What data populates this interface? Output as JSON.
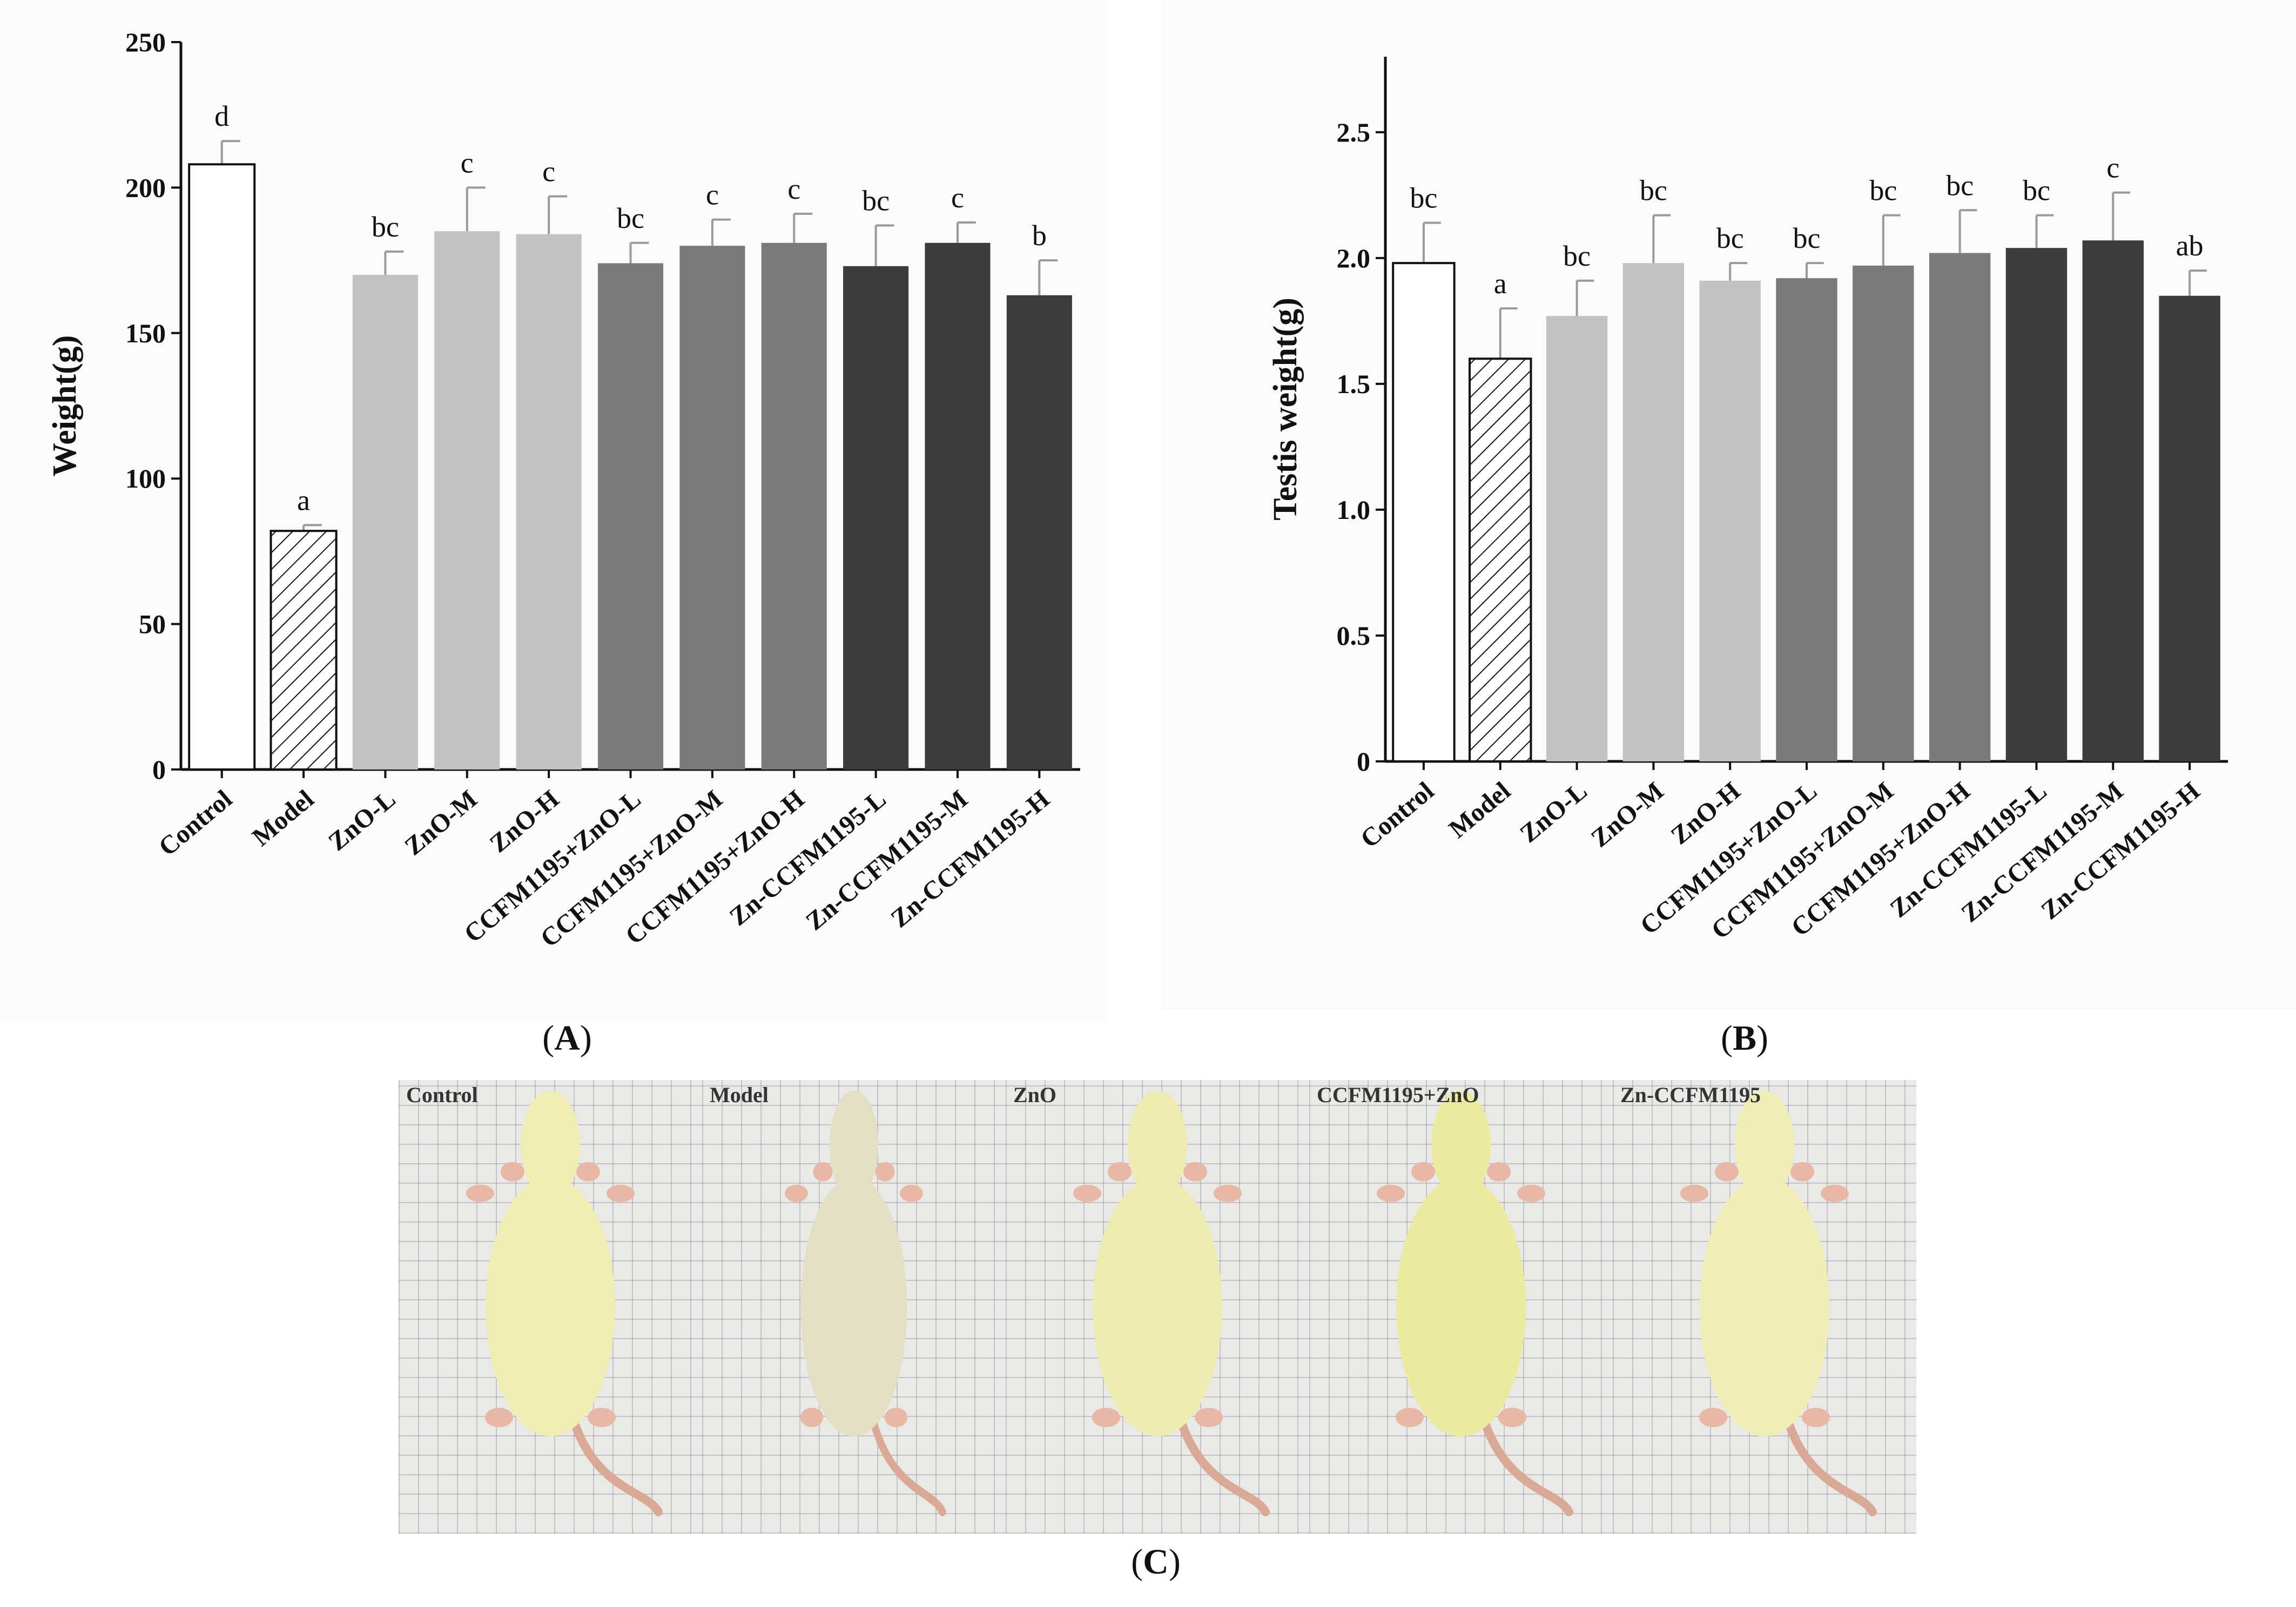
{
  "chart_data": [
    {
      "type": "bar",
      "panel_caption": "A",
      "ylabel": "Weight(g)",
      "ylim": [
        0,
        250
      ],
      "yticks": [
        "0",
        "50",
        "100",
        "150",
        "200",
        "250"
      ],
      "categories": [
        "Control",
        "Model",
        "ZnO-L",
        "ZnO-M",
        "ZnO-H",
        "CCFM1195+ZnO-L",
        "CCFM1195+ZnO-M",
        "CCFM1195+ZnO-H",
        "Zn-CCFM1195-L",
        "Zn-CCFM1195-M",
        "Zn-CCFM1195-H"
      ],
      "values": [
        208,
        82,
        170,
        185,
        184,
        174,
        180,
        181,
        173,
        181,
        163
      ],
      "errors": [
        8,
        2,
        8,
        15,
        13,
        7,
        9,
        10,
        14,
        7,
        12
      ],
      "letters": [
        "d",
        "a",
        "bc",
        "c",
        "c",
        "bc",
        "c",
        "c",
        "bc",
        "c",
        "b"
      ],
      "fills": [
        "#ffffff",
        "hatch",
        "#c2c2c2",
        "#c2c2c2",
        "#c2c2c2",
        "#7a7a7a",
        "#7a7a7a",
        "#7a7a7a",
        "#3c3c3c",
        "#3c3c3c",
        "#3c3c3c"
      ]
    },
    {
      "type": "bar",
      "panel_caption": "B",
      "ylabel": "Testis weight(g)",
      "ylim": [
        0,
        2.8
      ],
      "yticks": [
        "0",
        "0.5",
        "1.0",
        "1.5",
        "2.0",
        "2.5"
      ],
      "categories": [
        "Control",
        "Model",
        "ZnO-L",
        "ZnO-M",
        "ZnO-H",
        "CCFM1195+ZnO-L",
        "CCFM1195+ZnO-M",
        "CCFM1195+ZnO-H",
        "Zn-CCFM1195-L",
        "Zn-CCFM1195-M",
        "Zn-CCFM1195-H"
      ],
      "values": [
        1.98,
        1.6,
        1.77,
        1.98,
        1.91,
        1.92,
        1.97,
        2.02,
        2.04,
        2.07,
        1.85
      ],
      "errors": [
        0.16,
        0.2,
        0.14,
        0.19,
        0.07,
        0.06,
        0.2,
        0.17,
        0.13,
        0.19,
        0.1
      ],
      "letters": [
        "bc",
        "a",
        "bc",
        "bc",
        "bc",
        "bc",
        "bc",
        "bc",
        "bc",
        "c",
        "ab"
      ],
      "fills": [
        "#ffffff",
        "hatch",
        "#c2c2c2",
        "#c2c2c2",
        "#c2c2c2",
        "#7a7a7a",
        "#7a7a7a",
        "#7a7a7a",
        "#3c3c3c",
        "#3c3c3c",
        "#3c3c3c"
      ]
    }
  ],
  "captions": {
    "A": "A",
    "B": "B",
    "C": "C"
  },
  "photo": {
    "labels": [
      "Control",
      "Model",
      "ZnO",
      "CCFM1195+ZnO",
      "Zn-CCFM1195"
    ]
  }
}
